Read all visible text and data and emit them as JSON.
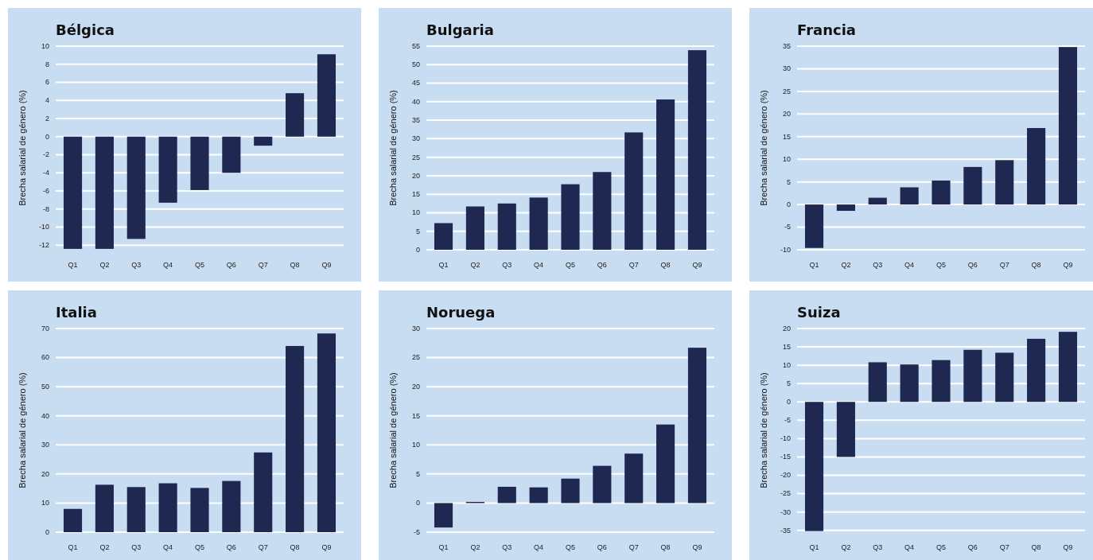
{
  "chart_data": [
    {
      "type": "bar",
      "title": "Bélgica",
      "ylabel": "Brecha salarial de género (%)",
      "categories": [
        "Q1",
        "Q2",
        "Q3",
        "Q4",
        "Q5",
        "Q6",
        "Q7",
        "Q8",
        "Q9"
      ],
      "values": [
        -12.4,
        -12.4,
        -11.3,
        -7.3,
        -5.9,
        -4.0,
        -1.0,
        4.8,
        9.1
      ],
      "color": "#1f2850",
      "ylim": [
        -12.5,
        10
      ],
      "yticks": [
        -12,
        -10,
        -8,
        -6,
        -4,
        -2,
        0,
        2,
        4,
        6,
        8,
        10
      ],
      "grid": "y"
    },
    {
      "type": "bar",
      "title": "Bulgaria",
      "ylabel": "Brecha salarial de género (%)",
      "categories": [
        "Q1",
        "Q2",
        "Q3",
        "Q4",
        "Q5",
        "Q6",
        "Q7",
        "Q8",
        "Q9"
      ],
      "values": [
        7.2,
        11.7,
        12.5,
        14.1,
        17.7,
        21.0,
        31.7,
        40.6,
        53.9
      ],
      "color": "#1f2850",
      "ylim": [
        0,
        55
      ],
      "yticks": [
        0,
        5,
        10,
        15,
        20,
        25,
        30,
        35,
        40,
        45,
        50,
        55
      ],
      "grid": "y"
    },
    {
      "type": "bar",
      "title": "Francia",
      "ylabel": "Brecha salarial de género (%)",
      "categories": [
        "Q1",
        "Q2",
        "Q3",
        "Q4",
        "Q5",
        "Q6",
        "Q7",
        "Q8",
        "Q9"
      ],
      "values": [
        -9.6,
        -1.4,
        1.5,
        3.8,
        5.3,
        8.3,
        9.8,
        16.9,
        34.8
      ],
      "color": "#1f2850",
      "ylim": [
        -10,
        35
      ],
      "yticks": [
        -10,
        -5,
        0,
        5,
        10,
        15,
        20,
        25,
        30,
        35
      ],
      "grid": "y"
    },
    {
      "type": "bar",
      "title": "Italia",
      "ylabel": "Brecha salarial de género (%)",
      "categories": [
        "Q1",
        "Q2",
        "Q3",
        "Q4",
        "Q5",
        "Q6",
        "Q7",
        "Q8",
        "Q9"
      ],
      "values": [
        8.0,
        16.3,
        15.5,
        16.8,
        15.2,
        17.6,
        27.4,
        64.0,
        68.3
      ],
      "color": "#1f2850",
      "ylim": [
        0,
        70
      ],
      "yticks": [
        0,
        10,
        20,
        30,
        40,
        50,
        60,
        70
      ],
      "grid": "y"
    },
    {
      "type": "bar",
      "title": "Noruega",
      "ylabel": "Brecha salarial de género (%)",
      "categories": [
        "Q1",
        "Q2",
        "Q3",
        "Q4",
        "Q5",
        "Q6",
        "Q7",
        "Q8",
        "Q9"
      ],
      "values": [
        -4.2,
        0.2,
        2.8,
        2.7,
        4.2,
        6.4,
        8.5,
        13.5,
        26.7
      ],
      "color": "#1f2850",
      "ylim": [
        -5,
        30
      ],
      "yticks": [
        -5,
        0,
        5,
        10,
        15,
        20,
        25,
        30
      ],
      "grid": "y"
    },
    {
      "type": "bar",
      "title": "Suiza",
      "ylabel": "Brecha salarial de género (%)",
      "categories": [
        "Q1",
        "Q2",
        "Q3",
        "Q4",
        "Q5",
        "Q6",
        "Q7",
        "Q8",
        "Q9"
      ],
      "values": [
        -35.2,
        -15.0,
        10.8,
        10.2,
        11.4,
        14.2,
        13.4,
        17.2,
        19.1
      ],
      "color": "#1f2850",
      "ylim": [
        -35.5,
        20
      ],
      "yticks": [
        -35,
        -30,
        -25,
        -20,
        -15,
        -10,
        -5,
        0,
        5,
        10,
        15,
        20
      ],
      "grid": "y"
    }
  ]
}
